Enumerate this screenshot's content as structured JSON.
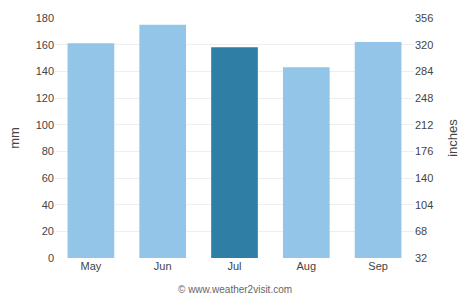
{
  "chart_data": {
    "type": "bar",
    "categories": [
      "May",
      "Jun",
      "Jul",
      "Aug",
      "Sep"
    ],
    "values": [
      161,
      175,
      158,
      143,
      162
    ],
    "colors": [
      "#92C5E8",
      "#92C5E8",
      "#2E7EA6",
      "#92C5E8",
      "#92C5E8"
    ],
    "ylabel": "mm",
    "y2label": "inches",
    "ylim": [
      0,
      180
    ],
    "yticks": [
      0,
      20,
      40,
      60,
      80,
      100,
      120,
      140,
      160,
      180
    ],
    "y2lim": [
      32,
      356
    ],
    "y2ticks": [
      32,
      68,
      104,
      140,
      176,
      212,
      248,
      284,
      320,
      356
    ],
    "grid": true,
    "annotations": [
      "© www.weather2visit.com"
    ]
  }
}
